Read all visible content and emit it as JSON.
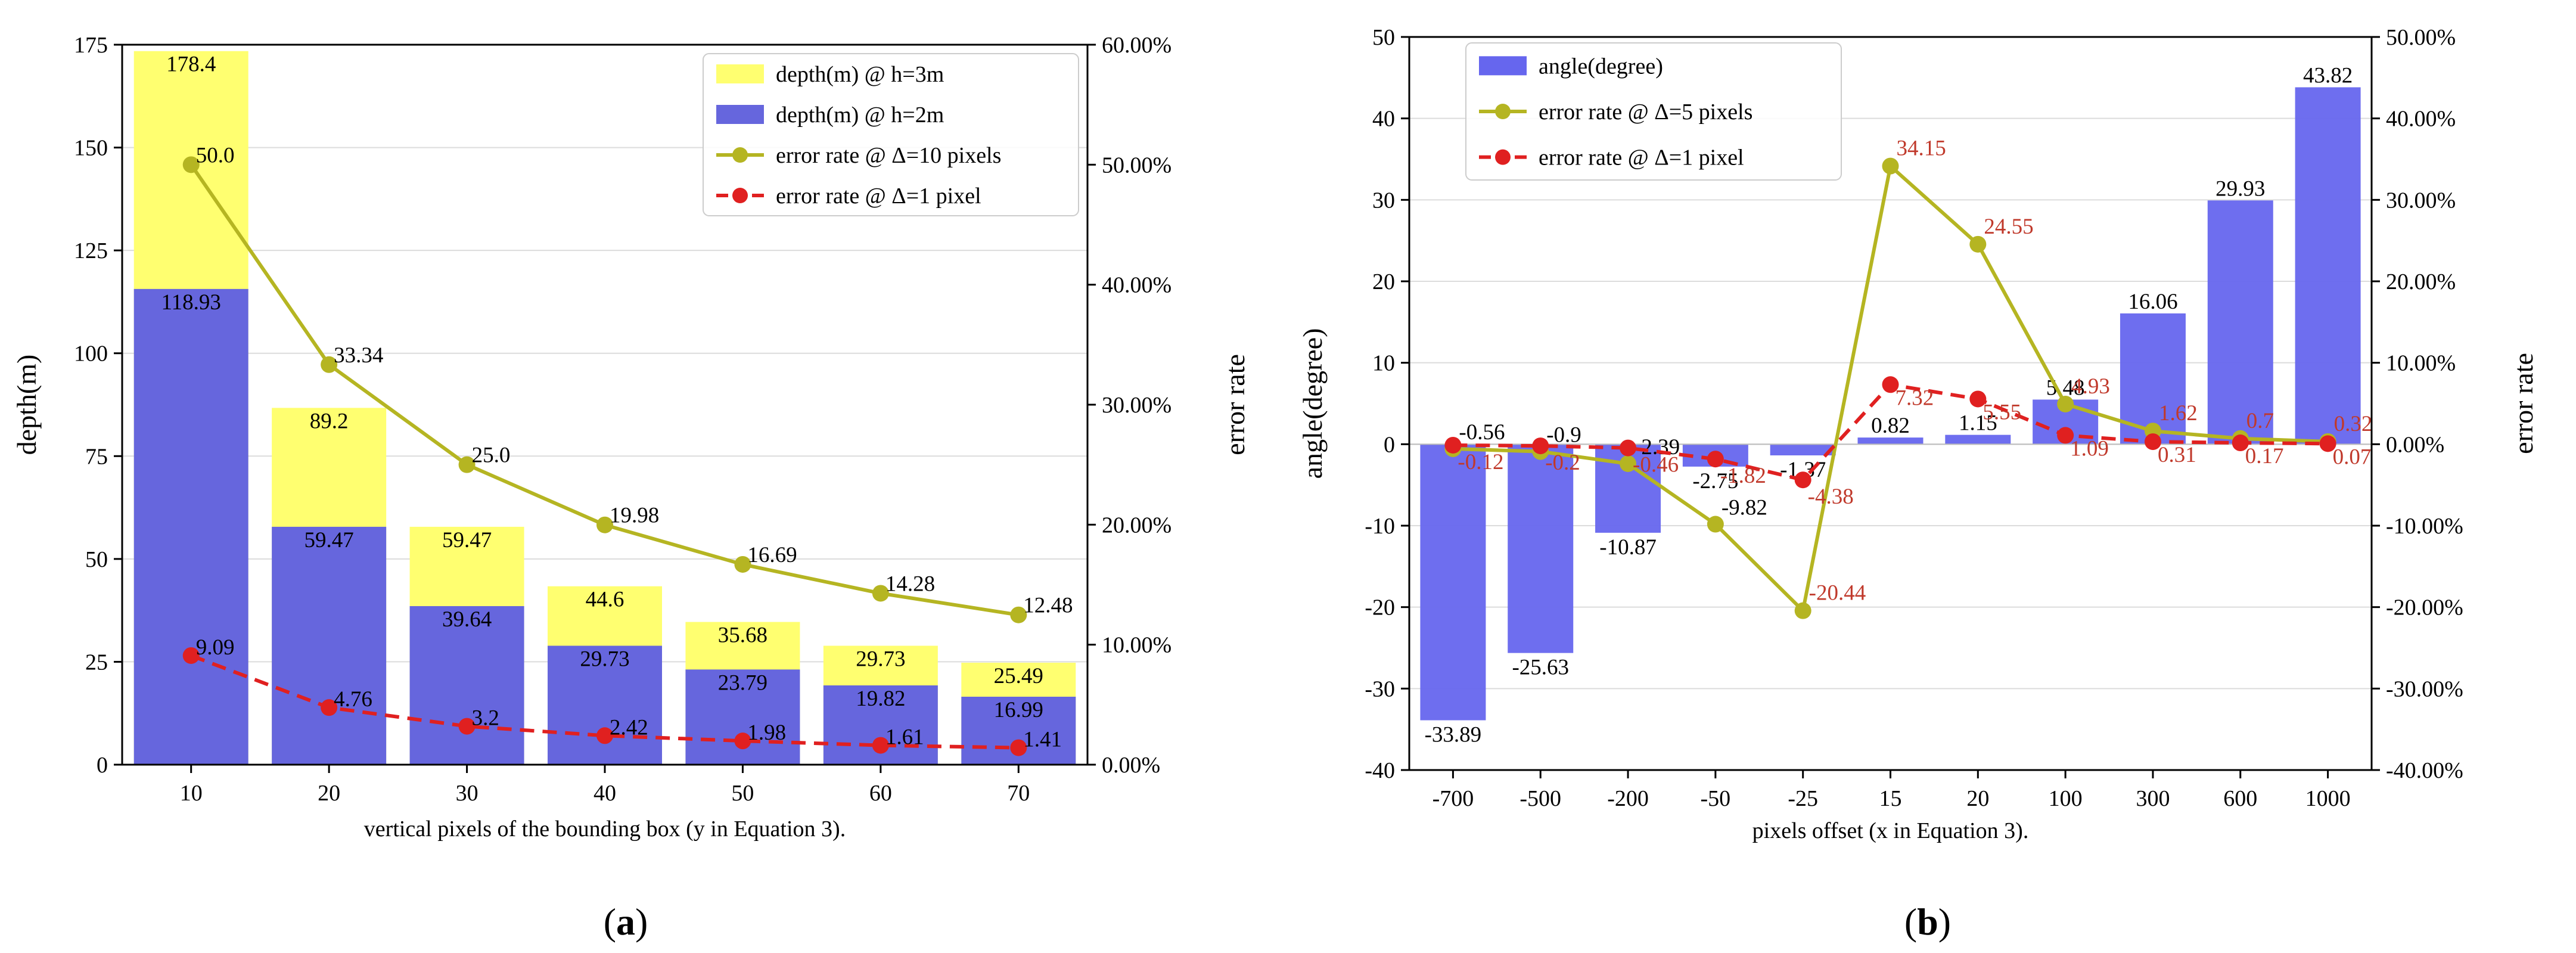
{
  "chart_data": [
    {
      "id": "a",
      "type": "bar",
      "subfigure_label": [
        "(",
        "a",
        ")"
      ],
      "xlabel": "vertical pixels of the bounding box (y in Equation 3).",
      "ylabel": "depth(m)",
      "ylabel_right": "error rate",
      "categories": [
        "10",
        "20",
        "30",
        "40",
        "50",
        "60",
        "70"
      ],
      "ylim": [
        0,
        180
      ],
      "yticks": [
        "0",
        "25",
        "50",
        "75",
        "100",
        "125",
        "150",
        "175"
      ],
      "ylim_right": [
        0,
        60
      ],
      "yticks_right": [
        "0.00%",
        "10.00%",
        "20.00%",
        "30.00%",
        "40.00%",
        "50.00%",
        "60.00%"
      ],
      "legend_position": "top-right",
      "series": [
        {
          "name": "depth(m) @ h=3m",
          "kind": "bar",
          "color": "#ffff70",
          "values": [
            178.4,
            89.2,
            59.47,
            44.6,
            35.68,
            29.73,
            25.49
          ],
          "labels": [
            "178.4",
            "89.2",
            "59.47",
            "44.6",
            "35.68",
            "29.73",
            "25.49"
          ]
        },
        {
          "name": "depth(m) @ h=2m",
          "kind": "bar",
          "color": "#6666dd",
          "values": [
            118.93,
            59.47,
            39.64,
            29.73,
            23.79,
            19.82,
            16.99
          ],
          "labels": [
            "118.93",
            "59.47",
            "39.64",
            "29.73",
            "23.79",
            "19.82",
            "16.99"
          ]
        },
        {
          "name": "error rate @ Δ=10 pixels",
          "kind": "line",
          "axis": "right",
          "color": "#b5b522",
          "values": [
            50.0,
            33.34,
            25.0,
            19.98,
            16.69,
            14.28,
            12.48
          ],
          "labels": [
            "50.0",
            "33.34",
            "25.0",
            "19.98",
            "16.69",
            "14.28",
            "12.48"
          ]
        },
        {
          "name": "error rate @ Δ=1 pixel",
          "kind": "line",
          "axis": "right",
          "style": "dashed",
          "color": "#e02020",
          "values": [
            9.09,
            4.76,
            3.2,
            2.42,
            1.98,
            1.61,
            1.41
          ],
          "labels": [
            "9.09",
            "4.76",
            "3.2",
            "2.42",
            "1.98",
            "1.61",
            "1.41"
          ]
        }
      ]
    },
    {
      "id": "b",
      "type": "bar",
      "subfigure_label": [
        "(",
        "b",
        ")"
      ],
      "xlabel": "pixels offset (x in Equation 3).",
      "ylabel": "angle(degree)",
      "ylabel_right": "error rate",
      "categories": [
        "-700",
        "-500",
        "-200",
        "-50",
        "-25",
        "15",
        "20",
        "100",
        "300",
        "600",
        "1000"
      ],
      "ylim": [
        -40,
        50
      ],
      "yticks": [
        "-40",
        "-30",
        "-20",
        "-10",
        "0",
        "10",
        "20",
        "30",
        "40",
        "50"
      ],
      "ylim_right": [
        -40,
        50
      ],
      "yticks_right": [
        "-40.00%",
        "-30.00%",
        "-20.00%",
        "-10.00%",
        "0.00%",
        "10.00%",
        "20.00%",
        "30.00%",
        "40.00%",
        "50.00%"
      ],
      "legend_position": "top-left",
      "series": [
        {
          "name": "angle(degree)",
          "kind": "bar",
          "color": "#6666ee",
          "values": [
            -33.89,
            -25.63,
            -10.87,
            -2.75,
            -1.37,
            0.82,
            1.15,
            5.48,
            16.06,
            29.93,
            43.82
          ],
          "labels": [
            "-33.89",
            "-25.63",
            "-10.87",
            "-2.75",
            "-1.37",
            "0.82",
            "1.15",
            "5.48",
            "16.06",
            "29.93",
            "43.82"
          ]
        },
        {
          "name": "error rate @ Δ=5 pixels",
          "kind": "line",
          "axis": "right",
          "color": "#b5b522",
          "values": [
            -0.56,
            -0.9,
            -2.39,
            -9.82,
            -20.44,
            34.15,
            24.55,
            4.93,
            1.62,
            0.7,
            0.32
          ],
          "labels": [
            "-0.56",
            "-0.9",
            "-2.39",
            "-9.82",
            "-20.44",
            "34.15",
            "24.55",
            "4.93",
            "1.62",
            "0.7",
            "0.32"
          ]
        },
        {
          "name": "error rate @ Δ=1 pixel",
          "kind": "line",
          "axis": "right",
          "style": "dashed",
          "color": "#e02020",
          "values": [
            -0.12,
            -0.2,
            -0.46,
            -1.82,
            -4.38,
            7.32,
            5.55,
            1.09,
            0.31,
            0.17,
            0.07
          ],
          "labels": [
            "-0.12",
            "-0.2",
            "-0.46",
            "-1.82",
            "-4.38",
            "7.32",
            "5.55",
            "1.09",
            "0.31",
            "0.17",
            "0.07"
          ]
        }
      ]
    }
  ]
}
